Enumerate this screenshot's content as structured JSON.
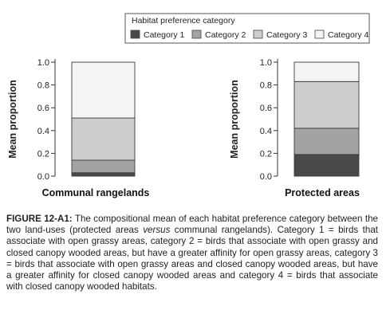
{
  "chart_data": {
    "type": "bar",
    "stacked": true,
    "legend": {
      "title": "Habitat preference category",
      "position": "top-right"
    },
    "series": [
      {
        "name": "Category 1",
        "color": "#4a4848"
      },
      {
        "name": "Category 2",
        "color": "#a3a3a3"
      },
      {
        "name": "Category 3",
        "color": "#cdcdcd"
      },
      {
        "name": "Category 4",
        "color": "#f4f4f4"
      }
    ],
    "ylabel": "Mean proportion",
    "ylim": [
      0,
      1
    ],
    "yticks": [
      "0.0",
      "0.2",
      "0.4",
      "0.6",
      "0.8",
      "1.0"
    ],
    "panels": [
      {
        "title": "Communal rangelands",
        "values": [
          0.03,
          0.11,
          0.37,
          0.49
        ]
      },
      {
        "title": "Protected areas",
        "values": [
          0.19,
          0.23,
          0.41,
          0.17
        ]
      }
    ]
  },
  "caption": {
    "label": "FIGURE 12-A1:",
    "text_1": " The compositional mean of each habitat preference category between the two land-uses (protected areas ",
    "italic": "versus",
    "text_2": " communal rangelands). Category 1 = birds that associate with open grassy areas, category 2 = birds that associate with open grassy and closed canopy wooded areas, but have a greater affinity for open grassy areas, category 3 = birds that associate with open grassy areas and closed canopy wooded areas, but have a greater affinity for closed canopy wooded areas and category 4 = birds that associate with closed canopy wooded habitats."
  }
}
